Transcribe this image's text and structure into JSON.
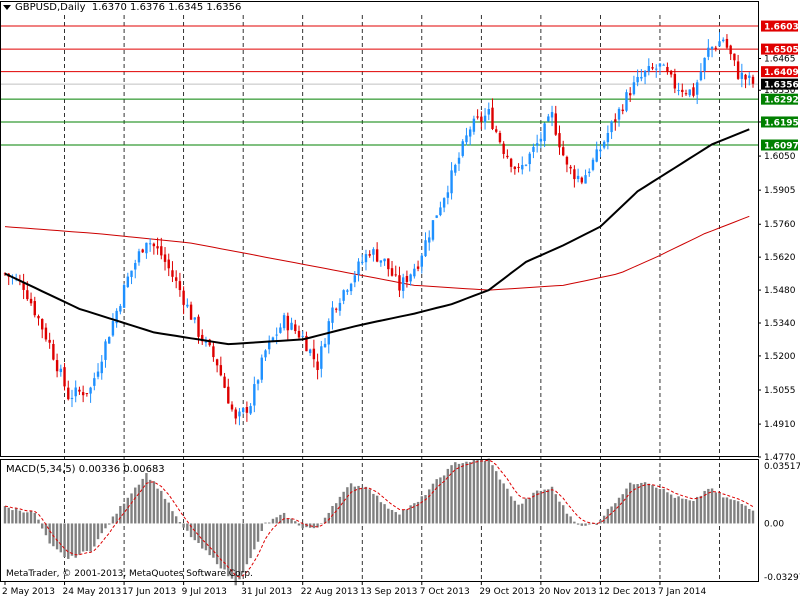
{
  "header": {
    "symbol": "GBPUSD,Daily",
    "ohlc": "1.6370 1.6376 1.6345 1.6356"
  },
  "macd_header": {
    "label": "MACD(5,34,5)",
    "values": "0.00336 0.00683"
  },
  "copyright": "MetaTrader, © 2001-2013, MetaQuotes Software Corp.",
  "price_axis": {
    "ticks": [
      "1.6465",
      "1.6330",
      "1.6195",
      "1.6050",
      "1.5905",
      "1.5760",
      "1.5620",
      "1.5480",
      "1.5340",
      "1.5200",
      "1.5055",
      "1.4910",
      "1.4770"
    ],
    "levels": [
      {
        "label": "1.6603",
        "value": 1.6603,
        "color": "#e00000",
        "text": "#ffffff"
      },
      {
        "label": "1.6505",
        "value": 1.6505,
        "color": "#e00000",
        "text": "#ffffff"
      },
      {
        "label": "1.6409",
        "value": 1.6409,
        "color": "#e00000",
        "text": "#ffffff"
      },
      {
        "label": "1.6356",
        "value": 1.6356,
        "color": "#000000",
        "text": "#ffffff"
      },
      {
        "label": "1.6292",
        "value": 1.6292,
        "color": "#008000",
        "text": "#ffffff"
      },
      {
        "label": "1.6195",
        "value": 1.6195,
        "color": "#008000",
        "text": "#ffffff"
      },
      {
        "label": "1.6097",
        "value": 1.6097,
        "color": "#008000",
        "text": "#ffffff"
      }
    ]
  },
  "macd_axis": {
    "ticks": [
      "0.03517",
      "0.00",
      "-0.03297"
    ]
  },
  "time_axis": {
    "labels": [
      "2 May 2013",
      "24 May 2013",
      "17 Jun 2013",
      "9 Jul 2013",
      "31 Jul 2013",
      "22 Aug 2013",
      "13 Sep 2013",
      "7 Oct 2013",
      "29 Oct 2013",
      "20 Nov 2013",
      "12 Dec 2013",
      "7 Jan 2014"
    ]
  },
  "colors": {
    "bull": "#1e90ff",
    "bear": "#dd0000",
    "ma_fast": "#000000",
    "ma_slow": "#cc0000",
    "macd_hist": "#808080",
    "macd_signal": "#dd0000"
  },
  "chart_data": {
    "type": "candlestick",
    "symbol": "GBPUSD",
    "timeframe": "Daily",
    "x_range": [
      "2 May 2013",
      "13 Jan 2014"
    ],
    "ylim": [
      1.477,
      1.665
    ],
    "close_trend": [
      [
        0,
        1.555
      ],
      [
        5,
        1.55
      ],
      [
        12,
        1.525
      ],
      [
        17,
        1.503
      ],
      [
        23,
        1.506
      ],
      [
        28,
        1.53
      ],
      [
        33,
        1.553
      ],
      [
        38,
        1.57
      ],
      [
        42,
        1.563
      ],
      [
        47,
        1.548
      ],
      [
        52,
        1.53
      ],
      [
        57,
        1.517
      ],
      [
        62,
        1.492
      ],
      [
        66,
        1.5
      ],
      [
        70,
        1.522
      ],
      [
        75,
        1.535
      ],
      [
        80,
        1.528
      ],
      [
        84,
        1.516
      ],
      [
        88,
        1.54
      ],
      [
        93,
        1.553
      ],
      [
        98,
        1.565
      ],
      [
        102,
        1.56
      ],
      [
        106,
        1.549
      ],
      [
        111,
        1.56
      ],
      [
        116,
        1.581
      ],
      [
        121,
        1.6
      ],
      [
        125,
        1.617
      ],
      [
        130,
        1.623
      ],
      [
        134,
        1.608
      ],
      [
        138,
        1.598
      ],
      [
        143,
        1.61
      ],
      [
        147,
        1.622
      ],
      [
        151,
        1.6
      ],
      [
        155,
        1.595
      ],
      [
        159,
        1.605
      ],
      [
        163,
        1.618
      ],
      [
        168,
        1.633
      ],
      [
        172,
        1.64
      ],
      [
        176,
        1.643
      ],
      [
        180,
        1.635
      ],
      [
        185,
        1.632
      ],
      [
        189,
        1.65
      ],
      [
        193,
        1.655
      ],
      [
        197,
        1.64
      ],
      [
        201,
        1.636
      ]
    ],
    "ma_fast_trend": [
      [
        0,
        1.555
      ],
      [
        20,
        1.54
      ],
      [
        40,
        1.53
      ],
      [
        60,
        1.525
      ],
      [
        80,
        1.527
      ],
      [
        95,
        1.533
      ],
      [
        110,
        1.538
      ],
      [
        120,
        1.542
      ],
      [
        130,
        1.548
      ],
      [
        140,
        1.56
      ],
      [
        150,
        1.567
      ],
      [
        160,
        1.575
      ],
      [
        170,
        1.59
      ],
      [
        180,
        1.6
      ],
      [
        190,
        1.61
      ],
      [
        201,
        1.617
      ]
    ],
    "ma_slow_trend": [
      [
        0,
        1.575
      ],
      [
        25,
        1.572
      ],
      [
        50,
        1.568
      ],
      [
        70,
        1.562
      ],
      [
        90,
        1.556
      ],
      [
        110,
        1.55
      ],
      [
        130,
        1.548
      ],
      [
        150,
        1.55
      ],
      [
        165,
        1.555
      ],
      [
        175,
        1.562
      ],
      [
        188,
        1.572
      ],
      [
        201,
        1.58
      ]
    ],
    "macd_trend": [
      [
        0,
        0.009
      ],
      [
        8,
        0.006
      ],
      [
        12,
        -0.012
      ],
      [
        17,
        -0.02
      ],
      [
        23,
        -0.015
      ],
      [
        28,
        0.0
      ],
      [
        33,
        0.015
      ],
      [
        38,
        0.028
      ],
      [
        42,
        0.018
      ],
      [
        47,
        0.0
      ],
      [
        52,
        -0.012
      ],
      [
        57,
        -0.022
      ],
      [
        62,
        -0.034
      ],
      [
        66,
        -0.02
      ],
      [
        70,
        0.0
      ],
      [
        75,
        0.005
      ],
      [
        80,
        -0.002
      ],
      [
        84,
        -0.003
      ],
      [
        88,
        0.01
      ],
      [
        93,
        0.022
      ],
      [
        98,
        0.02
      ],
      [
        102,
        0.01
      ],
      [
        106,
        0.006
      ],
      [
        111,
        0.012
      ],
      [
        116,
        0.024
      ],
      [
        121,
        0.034
      ],
      [
        125,
        0.035
      ],
      [
        130,
        0.036
      ],
      [
        134,
        0.022
      ],
      [
        138,
        0.01
      ],
      [
        143,
        0.018
      ],
      [
        147,
        0.02
      ],
      [
        151,
        0.006
      ],
      [
        155,
        -0.002
      ],
      [
        159,
        0.0
      ],
      [
        163,
        0.01
      ],
      [
        168,
        0.022
      ],
      [
        172,
        0.024
      ],
      [
        176,
        0.02
      ],
      [
        180,
        0.015
      ],
      [
        185,
        0.012
      ],
      [
        189,
        0.02
      ],
      [
        193,
        0.015
      ],
      [
        197,
        0.012
      ],
      [
        201,
        0.008
      ]
    ],
    "macd_ylim": [
      -0.03297,
      0.03517
    ],
    "indicators": [
      "MACD(5,34,5)"
    ]
  }
}
